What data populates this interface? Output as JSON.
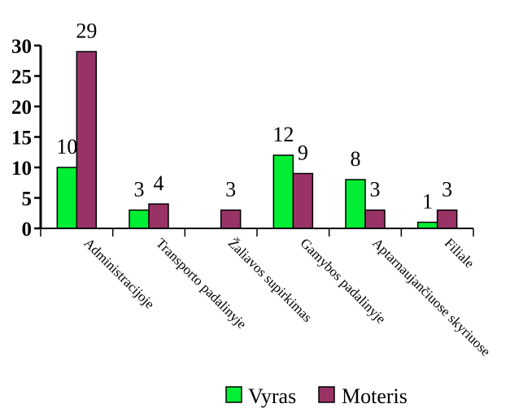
{
  "chart_data": {
    "type": "bar",
    "categories": [
      "Administracijoje",
      "Transporto padalinyje",
      "Žaliavos supirkimas",
      "Gamybos padalinyje",
      "Aptarnaujančiuose skyriuose",
      "Filiale"
    ],
    "series": [
      {
        "name": "Vyras",
        "color": "#00ee33",
        "values": [
          10,
          3,
          0,
          12,
          8,
          1
        ],
        "labels": [
          "10",
          "3",
          "",
          "12",
          "8",
          "1"
        ]
      },
      {
        "name": "Moteris",
        "color": "#993366",
        "values": [
          29,
          4,
          3,
          9,
          3,
          3
        ],
        "labels": [
          "29",
          "4",
          "3",
          "9",
          "3",
          "3"
        ]
      }
    ],
    "yticks": [
      "0",
      "5",
      "10",
      "15",
      "20",
      "25",
      "30"
    ],
    "ylim": [
      0,
      30
    ],
    "title": "",
    "xlabel": "",
    "ylabel": "",
    "grid": false,
    "legend": "bottom"
  }
}
